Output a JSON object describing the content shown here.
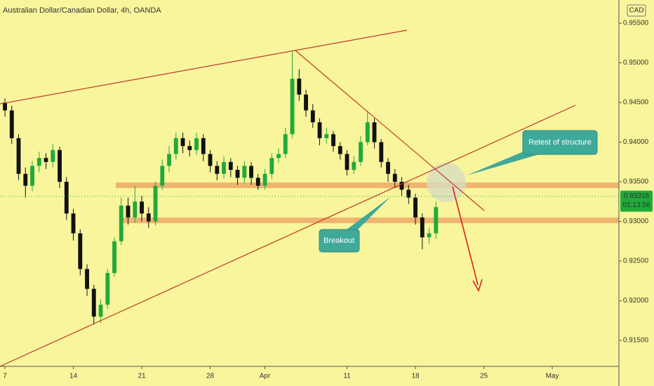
{
  "chart_data": {
    "type": "candlestick",
    "title": "Australian Dollar/Canadian Dollar, 4h, OANDA",
    "currency": "CAD",
    "last_price": 0.93318,
    "countdown": "01:13:56",
    "annotations": [
      "Retest of structure",
      "Breakout"
    ],
    "up_color": "#1faa3a",
    "down_color": "#111111",
    "xlim": [
      -0.36,
      44.87
    ],
    "xticks": [
      {
        "value": 0,
        "label": "7"
      },
      {
        "value": 5,
        "label": "14"
      },
      {
        "value": 10,
        "label": "21"
      },
      {
        "value": 15,
        "label": "28"
      },
      {
        "value": 19,
        "label": "Apr"
      },
      {
        "value": 25,
        "label": "11"
      },
      {
        "value": 30,
        "label": "18"
      },
      {
        "value": 35,
        "label": "25"
      },
      {
        "value": 40,
        "label": "May"
      }
    ],
    "ylim": [
      0.91173,
      0.95792
    ],
    "yticks": [
      {
        "value": 0.915,
        "label": "0.91500"
      },
      {
        "value": 0.92,
        "label": "0.92000"
      },
      {
        "value": 0.925,
        "label": "0.92500"
      },
      {
        "value": 0.93,
        "label": "0.93000"
      },
      {
        "value": 0.935,
        "label": "0.93500"
      },
      {
        "value": 0.94,
        "label": "0.94000"
      },
      {
        "value": 0.945,
        "label": "0.94500"
      },
      {
        "value": 0.95,
        "label": "0.95000"
      },
      {
        "value": 0.955,
        "label": "0.95500"
      }
    ],
    "x": [
      0,
      0.5,
      1,
      1.5,
      2,
      2.5,
      3,
      3.5,
      4,
      4.5,
      5,
      5.5,
      6,
      6.5,
      7,
      7.5,
      8,
      8.5,
      9,
      9.5,
      10,
      10.5,
      11,
      11.5,
      12,
      12.5,
      13,
      13.5,
      14,
      14.5,
      15,
      15.5,
      16,
      16.5,
      17,
      17.5,
      18,
      18.5,
      19,
      19.5,
      20,
      20.5,
      21,
      21.5,
      22,
      22.5,
      23,
      23.5,
      24,
      24.5,
      25,
      25.5,
      26,
      26.5,
      27,
      27.5,
      28,
      28.5,
      29,
      29.5,
      30,
      30.5,
      31,
      31.5
    ],
    "open": [
      0.945,
      0.944,
      0.9405,
      0.936,
      0.9345,
      0.937,
      0.938,
      0.9375,
      0.939,
      0.935,
      0.931,
      0.9285,
      0.924,
      0.9215,
      0.918,
      0.9195,
      0.9235,
      0.9275,
      0.932,
      0.9305,
      0.9325,
      0.931,
      0.93,
      0.9345,
      0.937,
      0.9385,
      0.9405,
      0.9395,
      0.939,
      0.9405,
      0.9385,
      0.937,
      0.936,
      0.9375,
      0.9365,
      0.9355,
      0.937,
      0.9355,
      0.9345,
      0.936,
      0.938,
      0.9385,
      0.941,
      0.948,
      0.946,
      0.944,
      0.9425,
      0.9405,
      0.941,
      0.9395,
      0.9385,
      0.9365,
      0.9375,
      0.94,
      0.9425,
      0.94,
      0.9375,
      0.936,
      0.935,
      0.934,
      0.933,
      0.9305,
      0.928,
      0.9285
    ],
    "high": [
      0.9455,
      0.9446,
      0.941,
      0.9368,
      0.9376,
      0.9388,
      0.9386,
      0.9398,
      0.9394,
      0.9356,
      0.9316,
      0.929,
      0.9246,
      0.922,
      0.9202,
      0.924,
      0.928,
      0.933,
      0.933,
      0.9345,
      0.9332,
      0.9318,
      0.935,
      0.9378,
      0.9395,
      0.9412,
      0.9412,
      0.9402,
      0.9412,
      0.941,
      0.939,
      0.9376,
      0.9382,
      0.938,
      0.937,
      0.9376,
      0.9375,
      0.936,
      0.9366,
      0.9386,
      0.9392,
      0.9418,
      0.9515,
      0.9492,
      0.9466,
      0.9448,
      0.943,
      0.9418,
      0.9414,
      0.94,
      0.939,
      0.9382,
      0.9408,
      0.944,
      0.943,
      0.9404,
      0.938,
      0.9366,
      0.9356,
      0.9346,
      0.9335,
      0.931,
      0.9292,
      0.9325
    ],
    "low": [
      0.9432,
      0.9398,
      0.9352,
      0.933,
      0.9338,
      0.9362,
      0.9366,
      0.9368,
      0.9342,
      0.9302,
      0.9276,
      0.9232,
      0.9206,
      0.917,
      0.9172,
      0.919,
      0.923,
      0.927,
      0.9296,
      0.9298,
      0.93,
      0.9292,
      0.9295,
      0.934,
      0.9362,
      0.9378,
      0.9386,
      0.9382,
      0.9384,
      0.9376,
      0.9362,
      0.9352,
      0.9354,
      0.9356,
      0.9346,
      0.9348,
      0.9346,
      0.934,
      0.934,
      0.9354,
      0.9374,
      0.938,
      0.9405,
      0.9452,
      0.9432,
      0.9418,
      0.9396,
      0.9398,
      0.9388,
      0.9378,
      0.9358,
      0.936,
      0.937,
      0.9396,
      0.9392,
      0.9368,
      0.935,
      0.9342,
      0.9332,
      0.9322,
      0.9296,
      0.9265,
      0.9272,
      0.9278
    ],
    "close": [
      0.944,
      0.9405,
      0.936,
      0.9345,
      0.937,
      0.938,
      0.9375,
      0.939,
      0.935,
      0.931,
      0.9285,
      0.924,
      0.9215,
      0.918,
      0.9195,
      0.9235,
      0.9275,
      0.932,
      0.9305,
      0.9325,
      0.931,
      0.93,
      0.9345,
      0.937,
      0.9385,
      0.9405,
      0.9395,
      0.939,
      0.9405,
      0.9385,
      0.937,
      0.936,
      0.9375,
      0.9365,
      0.9355,
      0.937,
      0.9355,
      0.9345,
      0.936,
      0.938,
      0.9385,
      0.941,
      0.948,
      0.946,
      0.944,
      0.9425,
      0.9405,
      0.941,
      0.9395,
      0.9385,
      0.9365,
      0.9375,
      0.94,
      0.9425,
      0.94,
      0.9375,
      0.936,
      0.935,
      0.934,
      0.933,
      0.9305,
      0.928,
      0.9285,
      0.9318
    ]
  }
}
